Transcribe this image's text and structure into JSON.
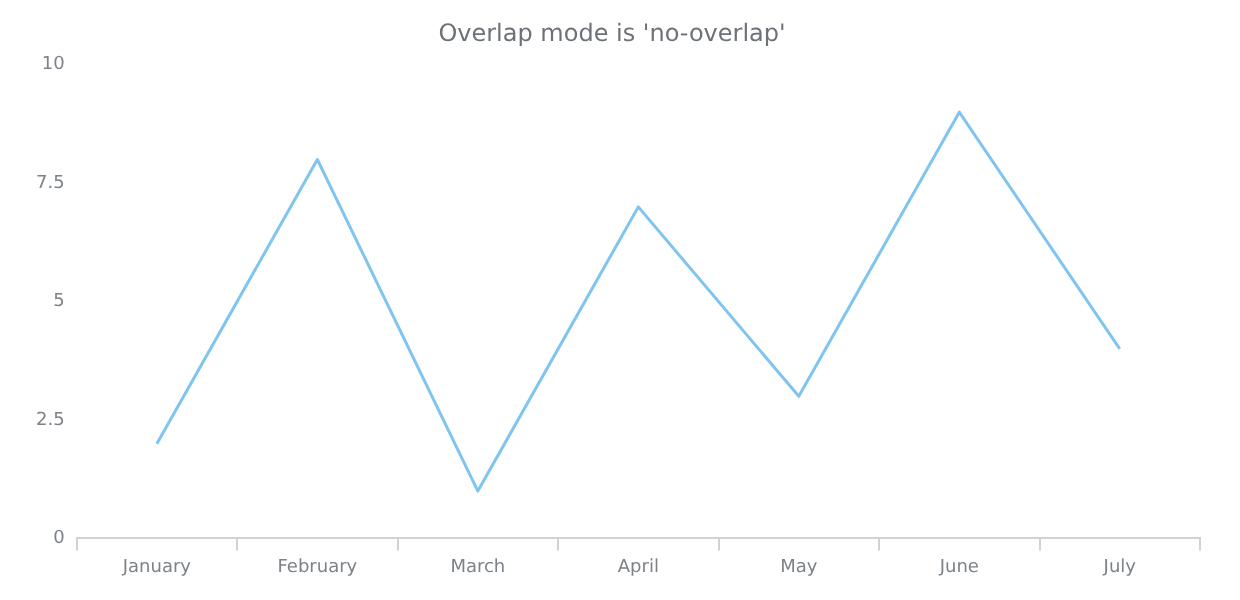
{
  "chart_data": {
    "type": "line",
    "title": "Overlap mode is 'no-overlap'",
    "categories": [
      "January",
      "February",
      "March",
      "April",
      "May",
      "June",
      "July"
    ],
    "series": [
      {
        "color": "#80c4f0",
        "values": [
          2,
          8,
          1,
          7,
          3,
          9,
          4
        ]
      }
    ],
    "ylim": [
      0,
      10
    ],
    "yticks": [
      0,
      2.5,
      5,
      7.5,
      10
    ],
    "grid": false,
    "legend": false,
    "marker": "none",
    "line_style": "solid"
  }
}
